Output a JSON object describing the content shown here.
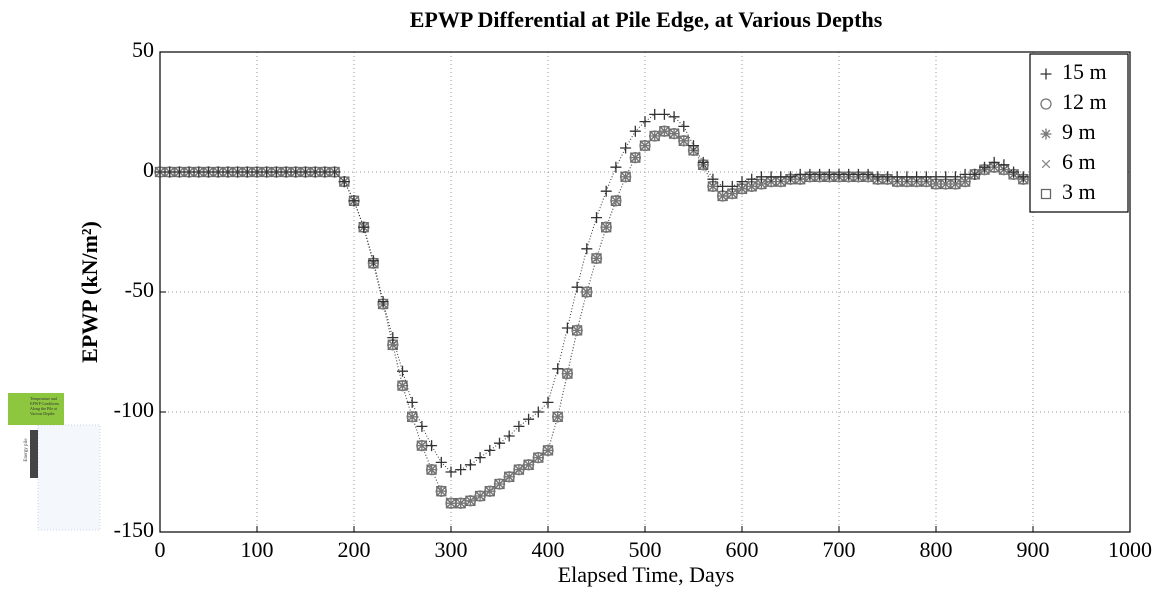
{
  "chart_data": {
    "type": "line",
    "title": "EPWP Differential at Pile Edge, at Various Depths",
    "xlabel": "Elapsed Time, Days",
    "ylabel": "EPWP (kN/m²)",
    "xlim": [
      0,
      1000
    ],
    "xticks": [
      0,
      100,
      200,
      300,
      400,
      500,
      600,
      700,
      800,
      900,
      1000
    ],
    "ylim": [
      -150,
      50
    ],
    "yticks": [
      -150,
      -100,
      -50,
      0,
      50
    ],
    "grid": true,
    "legend": "upper right",
    "x": [
      0,
      10,
      20,
      30,
      40,
      50,
      60,
      70,
      80,
      90,
      100,
      110,
      120,
      130,
      140,
      150,
      160,
      170,
      180,
      190,
      200,
      210,
      220,
      230,
      240,
      250,
      260,
      270,
      280,
      290,
      300,
      310,
      320,
      330,
      340,
      350,
      360,
      370,
      380,
      390,
      400,
      410,
      420,
      430,
      440,
      450,
      460,
      470,
      480,
      490,
      500,
      510,
      520,
      530,
      540,
      550,
      560,
      570,
      580,
      590,
      600,
      610,
      620,
      630,
      640,
      650,
      660,
      670,
      680,
      690,
      700,
      710,
      720,
      730,
      740,
      750,
      760,
      770,
      780,
      790,
      800,
      810,
      820,
      830,
      840,
      850,
      860,
      870,
      880,
      890
    ],
    "series": [
      {
        "name": "15 m",
        "marker": "+",
        "color": "#333333",
        "values": [
          0,
          0,
          0,
          0,
          0,
          0,
          0,
          0,
          0,
          0,
          0,
          0,
          0,
          0,
          0,
          0,
          0,
          0,
          0,
          -4,
          -12,
          -23,
          -37,
          -54,
          -69,
          -83,
          -96,
          -106,
          -114,
          -121,
          -125,
          -124,
          -122,
          -119,
          -116,
          -113,
          -110,
          -106,
          -103,
          -100,
          -96,
          -82,
          -65,
          -48,
          -32,
          -19,
          -8,
          2,
          10,
          17,
          21,
          24,
          24,
          23,
          19,
          11,
          4,
          -3,
          -6,
          -6,
          -4,
          -3,
          -2,
          -2,
          -2,
          -2,
          -1,
          -1,
          -1,
          -1,
          -1,
          -1,
          -1,
          -1,
          -2,
          -2,
          -2,
          -2,
          -2,
          -2,
          -2,
          -2,
          -2,
          -1,
          -1,
          2,
          4,
          3,
          0,
          -2
        ]
      },
      {
        "name": "12 m",
        "marker": "o",
        "color": "#777777",
        "values": [
          0,
          0,
          0,
          0,
          0,
          0,
          0,
          0,
          0,
          0,
          0,
          0,
          0,
          0,
          0,
          0,
          0,
          0,
          0,
          -4,
          -12,
          -23,
          -38,
          -55,
          -72,
          -89,
          -102,
          -114,
          -124,
          -133,
          -138,
          -138,
          -137,
          -135,
          -133,
          -130,
          -127,
          -124,
          -122,
          -119,
          -116,
          -102,
          -84,
          -66,
          -50,
          -36,
          -23,
          -12,
          -2,
          6,
          11,
          15,
          17,
          16,
          13,
          9,
          3,
          -6,
          -10,
          -9,
          -7,
          -6,
          -5,
          -4,
          -4,
          -3,
          -3,
          -2,
          -2,
          -2,
          -2,
          -2,
          -2,
          -2,
          -3,
          -3,
          -4,
          -4,
          -4,
          -4,
          -5,
          -5,
          -5,
          -4,
          -1,
          1,
          2,
          1,
          -1,
          -3
        ]
      },
      {
        "name": "9 m",
        "marker": "*",
        "color": "#777777",
        "values": [
          0,
          0,
          0,
          0,
          0,
          0,
          0,
          0,
          0,
          0,
          0,
          0,
          0,
          0,
          0,
          0,
          0,
          0,
          0,
          -4,
          -12,
          -23,
          -38,
          -55,
          -72,
          -89,
          -102,
          -114,
          -124,
          -133,
          -138,
          -138,
          -137,
          -135,
          -133,
          -130,
          -127,
          -124,
          -122,
          -119,
          -116,
          -102,
          -84,
          -66,
          -50,
          -36,
          -23,
          -12,
          -2,
          6,
          11,
          15,
          17,
          16,
          13,
          9,
          3,
          -6,
          -10,
          -9,
          -7,
          -6,
          -5,
          -4,
          -4,
          -3,
          -3,
          -2,
          -2,
          -2,
          -2,
          -2,
          -2,
          -2,
          -3,
          -3,
          -4,
          -4,
          -4,
          -4,
          -5,
          -5,
          -5,
          -4,
          -1,
          1,
          2,
          1,
          -1,
          -3
        ]
      },
      {
        "name": "6 m",
        "marker": "x",
        "color": "#888888",
        "values": [
          0,
          0,
          0,
          0,
          0,
          0,
          0,
          0,
          0,
          0,
          0,
          0,
          0,
          0,
          0,
          0,
          0,
          0,
          0,
          -4,
          -12,
          -23,
          -38,
          -55,
          -72,
          -89,
          -102,
          -114,
          -124,
          -133,
          -138,
          -138,
          -137,
          -135,
          -133,
          -130,
          -127,
          -124,
          -122,
          -119,
          -116,
          -102,
          -84,
          -66,
          -50,
          -36,
          -23,
          -12,
          -2,
          6,
          11,
          15,
          17,
          16,
          13,
          9,
          3,
          -6,
          -10,
          -9,
          -7,
          -6,
          -5,
          -4,
          -4,
          -3,
          -3,
          -2,
          -2,
          -2,
          -2,
          -2,
          -2,
          -2,
          -3,
          -3,
          -4,
          -4,
          -4,
          -4,
          -5,
          -5,
          -5,
          -4,
          -1,
          1,
          2,
          1,
          -1,
          -3
        ]
      },
      {
        "name": "3 m",
        "marker": "s",
        "color": "#666666",
        "values": [
          0,
          0,
          0,
          0,
          0,
          0,
          0,
          0,
          0,
          0,
          0,
          0,
          0,
          0,
          0,
          0,
          0,
          0,
          0,
          -4,
          -12,
          -23,
          -38,
          -55,
          -72,
          -89,
          -102,
          -114,
          -124,
          -133,
          -138,
          -138,
          -137,
          -135,
          -133,
          -130,
          -127,
          -124,
          -122,
          -119,
          -116,
          -102,
          -84,
          -66,
          -50,
          -36,
          -23,
          -12,
          -2,
          6,
          11,
          15,
          17,
          16,
          13,
          9,
          3,
          -6,
          -10,
          -9,
          -7,
          -6,
          -5,
          -4,
          -4,
          -3,
          -3,
          -2,
          -2,
          -2,
          -2,
          -2,
          -2,
          -2,
          -3,
          -3,
          -4,
          -4,
          -4,
          -4,
          -5,
          -5,
          -5,
          -4,
          -1,
          1,
          2,
          1,
          -1,
          -3
        ]
      }
    ]
  },
  "inset": {
    "caption": "Temperature and EPWP Conditions Along the Pile at Various Depths",
    "pile_label": "Energy pile"
  }
}
